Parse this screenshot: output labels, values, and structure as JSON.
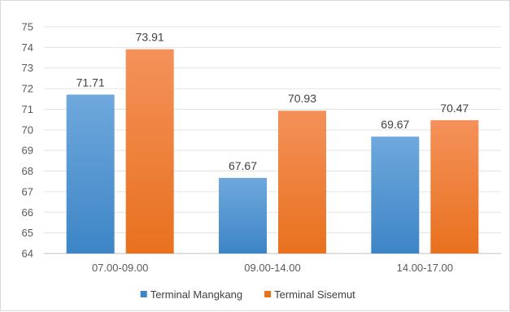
{
  "chart_data": {
    "type": "bar",
    "title": "",
    "xlabel": "",
    "ylabel": "",
    "ylim": [
      64,
      75
    ],
    "yticks": [
      64,
      65,
      66,
      67,
      68,
      69,
      70,
      71,
      72,
      73,
      74,
      75
    ],
    "categories": [
      "07.00-09.00",
      "09.00-14.00",
      "14.00-17.00"
    ],
    "series": [
      {
        "name": "Terminal Mangkang",
        "values": [
          71.71,
          67.67,
          69.67
        ],
        "labels": [
          "71.71",
          "67.67",
          "69.67"
        ],
        "color_top": "#6fa8dc",
        "color_bottom": "#3d85c6"
      },
      {
        "name": "Terminal Sisemut",
        "values": [
          73.91,
          70.93,
          70.47
        ],
        "labels": [
          "73.91",
          "70.93",
          "70.47"
        ],
        "color_top": "#f4915a",
        "color_bottom": "#e8711e"
      }
    ],
    "grid": true,
    "legend_position": "bottom"
  }
}
